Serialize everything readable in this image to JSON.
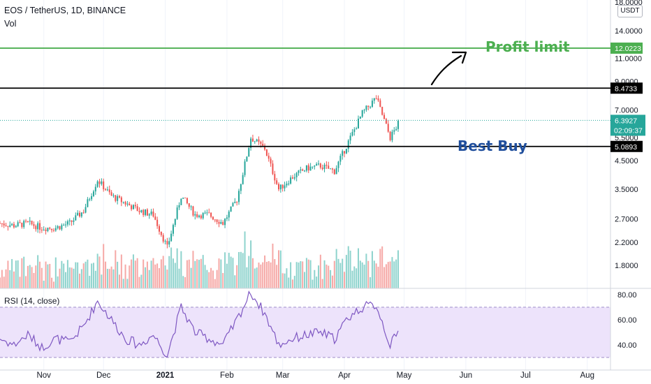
{
  "header": {
    "symbol_title": "EOS / TetherUS, 1D, BINANCE",
    "volume_label": "Vol",
    "currency_badge": "USDT",
    "rsi_label": "RSI (14, close)"
  },
  "price_axis": {
    "scale": "log",
    "ticks": [
      "18.0000",
      "14.0000",
      "11.0000",
      "9.0000",
      "7.0000",
      "5.5000",
      "4.5000",
      "3.5000",
      "2.7000",
      "2.2000",
      "1.8000"
    ]
  },
  "rsi_axis": {
    "ticks": [
      "80.00",
      "60.00",
      "40.00"
    ],
    "band": [
      30,
      70
    ]
  },
  "time_axis": {
    "labels": [
      {
        "text": "Nov",
        "bold": false
      },
      {
        "text": "Dec",
        "bold": false
      },
      {
        "text": "2021",
        "bold": true
      },
      {
        "text": "Feb",
        "bold": false
      },
      {
        "text": "Mar",
        "bold": false
      },
      {
        "text": "Apr",
        "bold": false
      },
      {
        "text": "May",
        "bold": false
      },
      {
        "text": "Jun",
        "bold": false
      },
      {
        "text": "Jul",
        "bold": false
      },
      {
        "text": "Aug",
        "bold": false
      }
    ]
  },
  "horizontal_lines": [
    {
      "name": "profit-line",
      "value": 12.0223,
      "label": "12.0223",
      "color": "#4caf50"
    },
    {
      "name": "resistance-line",
      "value": 8.4733,
      "label": "8.4733",
      "color": "#000000"
    },
    {
      "name": "support-line",
      "value": 5.0893,
      "label": "5.0893",
      "color": "#000000"
    }
  ],
  "current_price": {
    "value": "6.3927",
    "countdown": "02:09:37",
    "color": "#26a69a"
  },
  "annotations": {
    "profit_limit": "Profit limit",
    "best_buy": "Best Buy"
  },
  "colors": {
    "up": "#26a69a",
    "down": "#ef5350",
    "up_volume": "#8ed3cd",
    "down_volume": "#f6a8a6",
    "rsi_line": "#7e57c2",
    "rsi_band": "#ede3fb",
    "profit_text": "#4caf50",
    "best_buy_text": "#1f4e9c"
  },
  "chart_data": {
    "type": "candlestick",
    "symbol": "EOS / TetherUS",
    "interval": "1D",
    "exchange": "BINANCE",
    "y_scale": "log",
    "ylim": [
      1.6,
      18.0
    ],
    "dates": [
      "2020-10-10",
      "2020-10-17",
      "2020-10-24",
      "2020-10-31",
      "2020-11-07",
      "2020-11-14",
      "2020-11-21",
      "2020-11-28",
      "2020-12-05",
      "2020-12-12",
      "2020-12-19",
      "2020-12-26",
      "2021-01-02",
      "2021-01-09",
      "2021-01-16",
      "2021-01-23",
      "2021-01-30",
      "2021-02-06",
      "2021-02-13",
      "2021-02-20",
      "2021-02-27",
      "2021-03-06",
      "2021-03-13",
      "2021-03-20",
      "2021-03-27",
      "2021-04-03",
      "2021-04-10",
      "2021-04-17",
      "2021-04-24",
      "2021-04-29"
    ],
    "close": [
      2.6,
      2.55,
      2.6,
      2.5,
      2.5,
      2.6,
      2.9,
      3.8,
      3.3,
      3.1,
      2.9,
      2.8,
      2.1,
      3.3,
      2.8,
      2.8,
      2.6,
      3.2,
      5.5,
      5.0,
      3.5,
      3.9,
      4.2,
      4.3,
      4.1,
      5.3,
      6.8,
      7.8,
      5.5,
      6.39
    ],
    "rsi": [
      45,
      40,
      48,
      38,
      45,
      42,
      55,
      75,
      60,
      45,
      40,
      48,
      32,
      70,
      50,
      45,
      40,
      60,
      82,
      65,
      40,
      45,
      48,
      50,
      45,
      62,
      70,
      72,
      40,
      52
    ],
    "horizontal_levels": {
      "profit_limit": 12.0223,
      "resistance": 8.4733,
      "best_buy": 5.0893
    },
    "last_price": 6.3927
  }
}
